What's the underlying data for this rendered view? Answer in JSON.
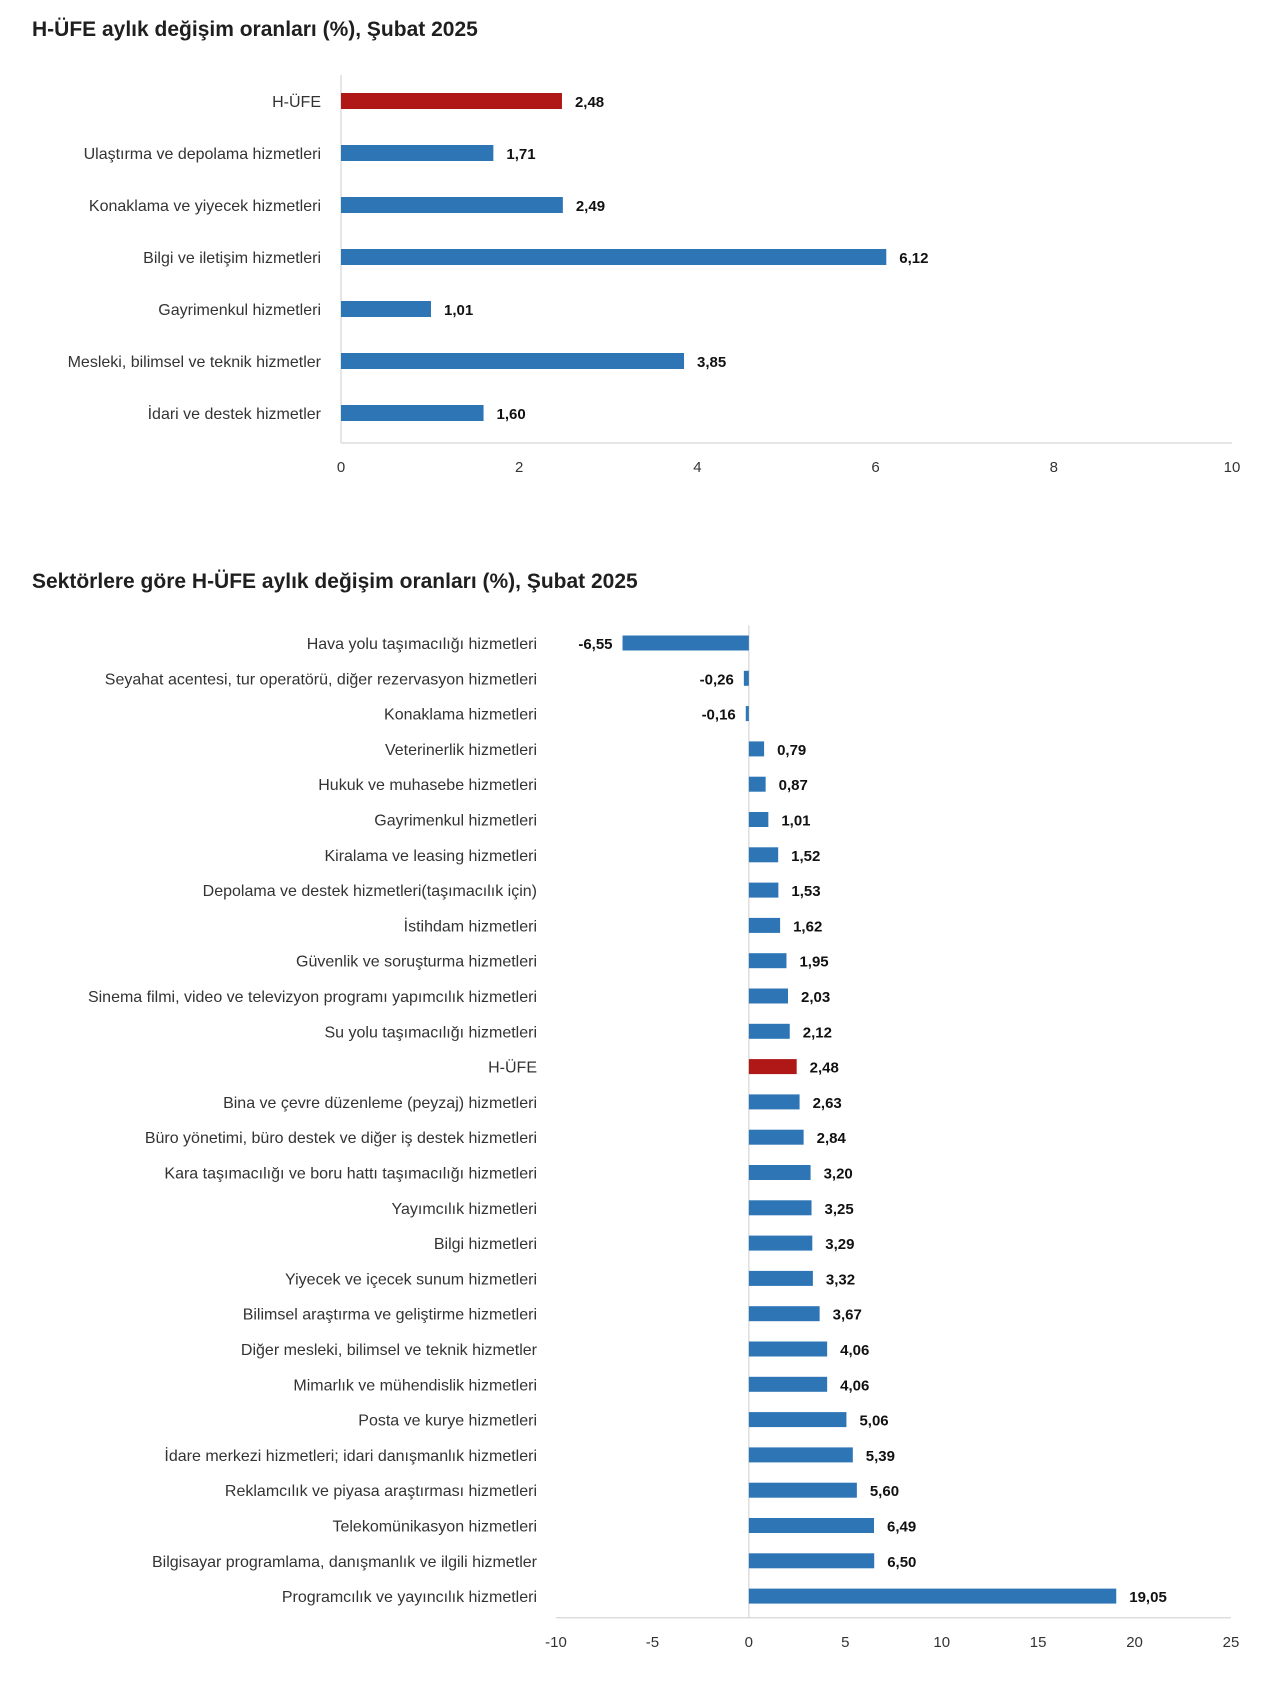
{
  "chart_data": [
    {
      "type": "bar",
      "orientation": "horizontal",
      "title": "H-ÜFE aylık değişim oranları (%), Şubat 2025",
      "categories": [
        "H-ÜFE",
        "Ulaştırma ve depolama hizmetleri",
        "Konaklama ve yiyecek hizmetleri",
        "Bilgi ve iletişim hizmetleri",
        "Gayrimenkul hizmetleri",
        "Mesleki, bilimsel ve teknik hizmetler",
        "İdari ve destek hizmetler"
      ],
      "values": [
        2.48,
        1.71,
        2.49,
        6.12,
        1.01,
        3.85,
        1.6
      ],
      "value_labels": [
        "2,48",
        "1,71",
        "2,49",
        "6,12",
        "1,01",
        "3,85",
        "1,60"
      ],
      "highlight_index": 0,
      "xlim": [
        0,
        10
      ],
      "xticks": [
        "0",
        "2",
        "4",
        "6",
        "8",
        "10"
      ],
      "xlabel": "",
      "ylabel": "",
      "colors": {
        "bar": "#2e75b6",
        "highlight": "#b01818"
      }
    },
    {
      "type": "bar",
      "orientation": "horizontal",
      "title": "Sektörlere göre H-ÜFE aylık değişim oranları (%), Şubat 2025",
      "categories": [
        "Hava yolu taşımacılığı hizmetleri",
        "Seyahat acentesi, tur operatörü, diğer rezervasyon hizmetleri",
        "Konaklama hizmetleri",
        "Veterinerlik hizmetleri",
        "Hukuk ve muhasebe hizmetleri",
        "Gayrimenkul hizmetleri",
        "Kiralama ve leasing hizmetleri",
        "Depolama ve destek hizmetleri(taşımacılık için)",
        "İstihdam hizmetleri",
        "Güvenlik ve soruşturma hizmetleri",
        "Sinema filmi, video ve televizyon programı yapımcılık hizmetleri",
        "Su yolu taşımacılığı hizmetleri",
        "H-ÜFE",
        "Bina ve çevre düzenleme (peyzaj) hizmetleri",
        "Büro yönetimi, büro destek ve diğer iş destek hizmetleri",
        "Kara taşımacılığı ve boru hattı taşımacılığı hizmetleri",
        "Yayımcılık hizmetleri",
        "Bilgi hizmetleri",
        "Yiyecek ve içecek sunum hizmetleri",
        "Bilimsel araştırma ve geliştirme hizmetleri",
        "Diğer mesleki, bilimsel ve teknik hizmetler",
        "Mimarlık ve mühendislik hizmetleri",
        "Posta ve kurye hizmetleri",
        "İdare merkezi hizmetleri; idari danışmanlık hizmetleri",
        "Reklamcılık ve piyasa araştırması hizmetleri",
        "Telekomünikasyon hizmetleri",
        "Bilgisayar programlama, danışmanlık ve ilgili hizmetler",
        "Programcılık ve yayıncılık hizmetleri"
      ],
      "values": [
        -6.55,
        -0.26,
        -0.16,
        0.79,
        0.87,
        1.01,
        1.52,
        1.53,
        1.62,
        1.95,
        2.03,
        2.12,
        2.48,
        2.63,
        2.84,
        3.2,
        3.25,
        3.29,
        3.32,
        3.67,
        4.06,
        4.06,
        5.06,
        5.39,
        5.6,
        6.49,
        6.5,
        19.05
      ],
      "value_labels": [
        "-6,55",
        "-0,26",
        "-0,16",
        "0,79",
        "0,87",
        "1,01",
        "1,52",
        "1,53",
        "1,62",
        "1,95",
        "2,03",
        "2,12",
        "2,48",
        "2,63",
        "2,84",
        "3,20",
        "3,25",
        "3,29",
        "3,32",
        "3,67",
        "4,06",
        "4,06",
        "5,06",
        "5,39",
        "5,60",
        "6,49",
        "6,50",
        "19,05"
      ],
      "highlight_index": 12,
      "xlim": [
        -10,
        25
      ],
      "xticks": [
        "-10",
        "-5",
        "0",
        "5",
        "10",
        "15",
        "20",
        "25"
      ],
      "xlabel": "",
      "ylabel": "",
      "colors": {
        "bar": "#2e75b6",
        "highlight": "#b01818"
      }
    }
  ]
}
